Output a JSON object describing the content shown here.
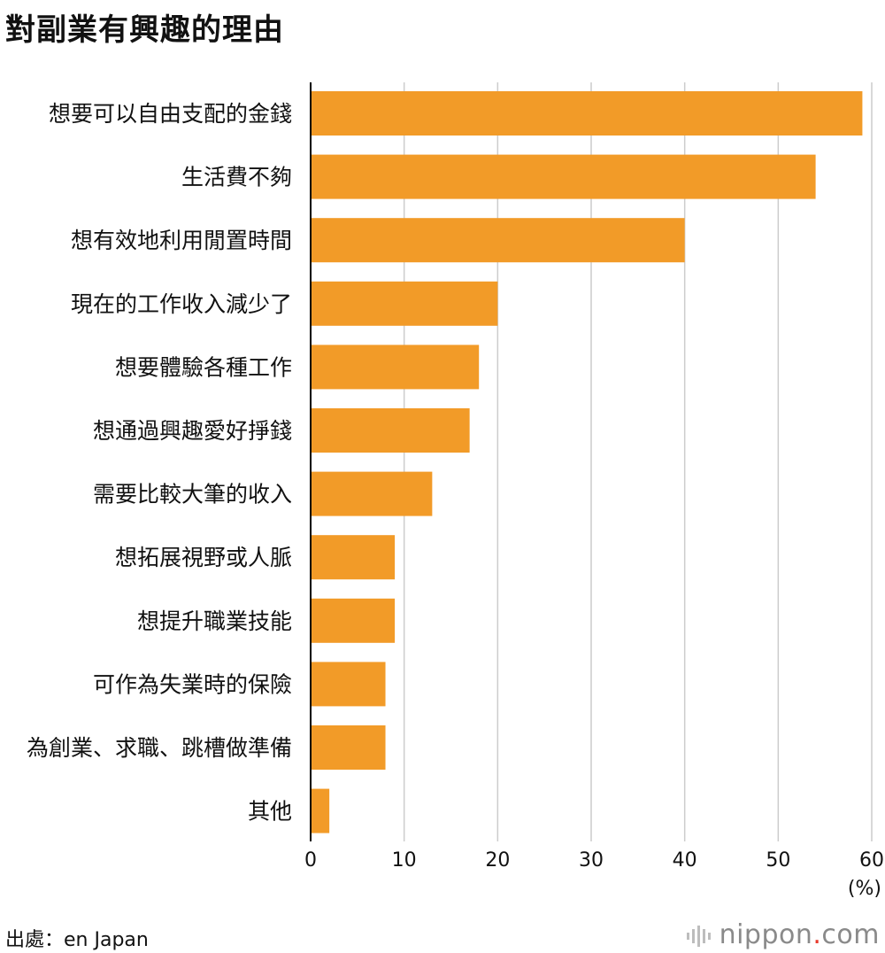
{
  "title": "對副業有興趣的理由",
  "source": "出處：en Japan",
  "brand": {
    "name": "nippon",
    "dot": ".",
    "suffix": "com",
    "icon": "sound-bars-icon"
  },
  "colors": {
    "bar": "#f29b28",
    "grid": "#cccccc",
    "axis": "#000000",
    "brand_dot": "#e8392b"
  },
  "chart_data": {
    "type": "bar",
    "orientation": "horizontal",
    "categories": [
      "想要可以自由支配的金錢",
      "生活費不夠",
      "想有效地利用閒置時間",
      "現在的工作收入減少了",
      "想要體驗各種工作",
      "想通過興趣愛好掙錢",
      "需要比較大筆的收入",
      "想拓展視野或人脈",
      "想提升職業技能",
      "可作為失業時的保險",
      "為創業、求職、跳槽做準備",
      "其他"
    ],
    "values": [
      59,
      54,
      40,
      20,
      18,
      17,
      13,
      9,
      9,
      8,
      8,
      2
    ],
    "xlim": [
      0,
      60
    ],
    "xticks": [
      "0",
      "10",
      "20",
      "30",
      "40",
      "50",
      "60"
    ],
    "unit": "(%)",
    "grid": true
  }
}
